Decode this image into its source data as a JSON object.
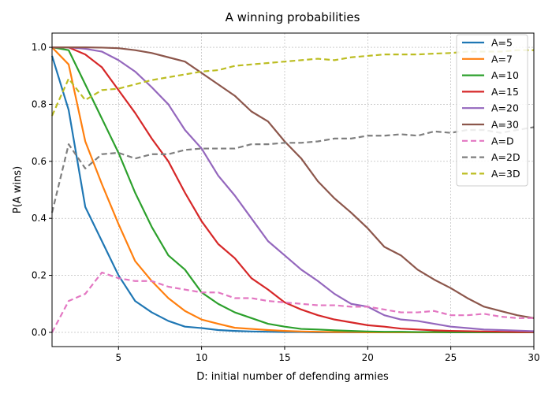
{
  "chart_data": {
    "type": "line",
    "title": "A winning probabilities",
    "xlabel": "D: initial number of defending armies",
    "ylabel": "P(A wins)",
    "xlim": [
      1,
      30
    ],
    "ylim": [
      -0.05,
      1.05
    ],
    "xticks": [
      5,
      10,
      15,
      20,
      25,
      30
    ],
    "yticks": [
      0.0,
      0.2,
      0.4,
      0.6,
      0.8,
      1.0
    ],
    "grid": true,
    "legend_position": "top-right",
    "x": [
      1,
      2,
      3,
      4,
      5,
      6,
      7,
      8,
      9,
      10,
      11,
      12,
      13,
      14,
      15,
      16,
      17,
      18,
      19,
      20,
      21,
      22,
      23,
      24,
      25,
      26,
      27,
      28,
      29,
      30
    ],
    "series": [
      {
        "name": "A=5",
        "color": "#1f77b4",
        "dash": "solid",
        "values": [
          0.97,
          0.78,
          0.44,
          0.32,
          0.2,
          0.11,
          0.07,
          0.04,
          0.02,
          0.015,
          0.008,
          0.005,
          0.003,
          0.002,
          0.001,
          0.001,
          0.0,
          0.0,
          0.0,
          0.0,
          0.0,
          0.0,
          0.0,
          0.0,
          0.0,
          0.0,
          0.0,
          0.0,
          0.0,
          0.0
        ]
      },
      {
        "name": "A=7",
        "color": "#ff7f0e",
        "dash": "solid",
        "values": [
          1.0,
          0.94,
          0.67,
          0.52,
          0.38,
          0.25,
          0.18,
          0.12,
          0.075,
          0.045,
          0.03,
          0.016,
          0.012,
          0.008,
          0.005,
          0.003,
          0.002,
          0.001,
          0.001,
          0.0,
          0.0,
          0.0,
          0.0,
          0.0,
          0.0,
          0.0,
          0.0,
          0.0,
          0.0,
          0.0
        ]
      },
      {
        "name": "A=10",
        "color": "#2ca02c",
        "dash": "solid",
        "values": [
          1.0,
          0.99,
          0.87,
          0.75,
          0.63,
          0.49,
          0.37,
          0.27,
          0.22,
          0.14,
          0.1,
          0.07,
          0.05,
          0.03,
          0.02,
          0.012,
          0.01,
          0.007,
          0.005,
          0.003,
          0.002,
          0.002,
          0.001,
          0.001,
          0.0,
          0.0,
          0.0,
          0.0,
          0.0,
          0.0
        ]
      },
      {
        "name": "A=15",
        "color": "#d62728",
        "dash": "solid",
        "values": [
          1.0,
          1.0,
          0.975,
          0.93,
          0.85,
          0.77,
          0.68,
          0.6,
          0.49,
          0.39,
          0.31,
          0.26,
          0.19,
          0.15,
          0.105,
          0.08,
          0.06,
          0.045,
          0.035,
          0.025,
          0.02,
          0.013,
          0.01,
          0.007,
          0.005,
          0.004,
          0.003,
          0.002,
          0.001,
          0.001
        ]
      },
      {
        "name": "A=20",
        "color": "#9467bd",
        "dash": "solid",
        "values": [
          1.0,
          1.0,
          0.995,
          0.985,
          0.955,
          0.915,
          0.86,
          0.8,
          0.71,
          0.645,
          0.55,
          0.48,
          0.4,
          0.32,
          0.27,
          0.22,
          0.18,
          0.135,
          0.1,
          0.09,
          0.06,
          0.045,
          0.04,
          0.03,
          0.02,
          0.015,
          0.01,
          0.008,
          0.006,
          0.004
        ]
      },
      {
        "name": "A=30",
        "color": "#8c564b",
        "dash": "solid",
        "values": [
          1.0,
          1.0,
          1.0,
          0.999,
          0.997,
          0.99,
          0.98,
          0.965,
          0.95,
          0.91,
          0.87,
          0.83,
          0.775,
          0.74,
          0.67,
          0.61,
          0.53,
          0.47,
          0.42,
          0.365,
          0.3,
          0.27,
          0.22,
          0.185,
          0.155,
          0.12,
          0.09,
          0.075,
          0.06,
          0.05
        ]
      },
      {
        "name": "A=D",
        "color": "#e377c2",
        "dash": "dashed",
        "values": [
          0.0,
          0.11,
          0.135,
          0.21,
          0.19,
          0.18,
          0.18,
          0.16,
          0.15,
          0.14,
          0.14,
          0.12,
          0.12,
          0.11,
          0.105,
          0.1,
          0.095,
          0.095,
          0.09,
          0.09,
          0.08,
          0.07,
          0.07,
          0.075,
          0.06,
          0.06,
          0.065,
          0.055,
          0.05,
          0.05
        ]
      },
      {
        "name": "A=2D",
        "color": "#7f7f7f",
        "dash": "dashed",
        "values": [
          0.42,
          0.66,
          0.575,
          0.625,
          0.63,
          0.61,
          0.625,
          0.625,
          0.64,
          0.645,
          0.645,
          0.645,
          0.66,
          0.66,
          0.665,
          0.665,
          0.67,
          0.68,
          0.68,
          0.69,
          0.69,
          0.695,
          0.69,
          0.705,
          0.7,
          0.71,
          0.71,
          0.7,
          0.71,
          0.72
        ]
      },
      {
        "name": "A=3D",
        "color": "#bcbd22",
        "dash": "dashed",
        "values": [
          0.76,
          0.89,
          0.815,
          0.85,
          0.855,
          0.87,
          0.885,
          0.895,
          0.905,
          0.915,
          0.92,
          0.935,
          0.94,
          0.945,
          0.95,
          0.955,
          0.96,
          0.955,
          0.965,
          0.97,
          0.975,
          0.975,
          0.975,
          0.978,
          0.98,
          0.985,
          0.985,
          0.985,
          0.99,
          0.99
        ]
      }
    ]
  }
}
